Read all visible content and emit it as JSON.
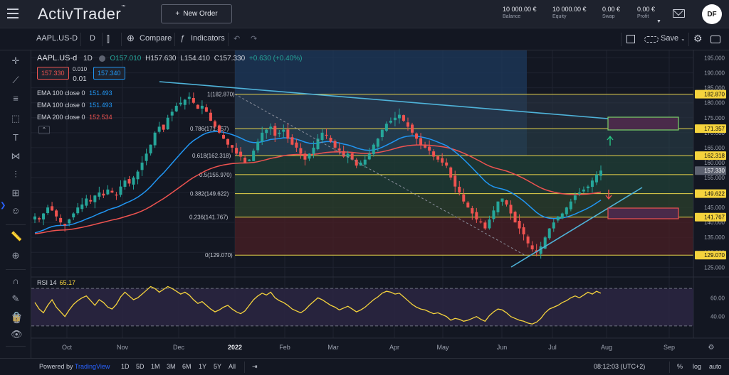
{
  "app": {
    "logo": "ActivTrader",
    "logo_tm": "™",
    "new_order_label": "New Order"
  },
  "account": [
    {
      "value": "10 000.00 €",
      "label": "Balance"
    },
    {
      "value": "10 000.00 €",
      "label": "Equity"
    },
    {
      "value": "0.00 €",
      "label": "Swap"
    },
    {
      "value": "0.00 €",
      "label": "Profit"
    }
  ],
  "user": {
    "initials": "DF"
  },
  "toolbar": {
    "symbol": "AAPL.US-D",
    "interval": "D",
    "compare_label": "Compare",
    "indicators_label": "Indicators",
    "save_label": "Save"
  },
  "legend": {
    "symbol": "AAPL.US-d",
    "interval": "1D",
    "open": "O157.010",
    "high": "H157.630",
    "low": "L154.410",
    "close": "C157.330",
    "change": "+0.630 (+0.40%)",
    "bid": "157.330",
    "spread_top": "0.010",
    "spread_bottom": "0.01",
    "ask": "157.340",
    "ema": [
      {
        "label": "EMA 100 close 0",
        "value": "151.493",
        "color": "#2196f3"
      },
      {
        "label": "EMA 100 close 0",
        "value": "151.493",
        "color": "#2196f3"
      },
      {
        "label": "EMA 200 close 0",
        "value": "152.534",
        "color": "#ef5350"
      }
    ],
    "collapse": "⌃"
  },
  "rsi": {
    "label": "RSI 14",
    "value": "65.17"
  },
  "chart_data": {
    "type": "candlestick",
    "price_axis": [
      "195.000",
      "190.000",
      "185.000",
      "180.000",
      "175.000",
      "170.000",
      "165.000",
      "160.000",
      "155.000",
      "150.000",
      "145.000",
      "140.000",
      "135.000",
      "130.000",
      "125.000"
    ],
    "price_labels": [
      {
        "text": "182.870",
        "price": 182.87
      },
      {
        "text": "171.357",
        "price": 171.357
      },
      {
        "text": "162.318",
        "price": 162.318
      },
      {
        "text": "157.330",
        "price": 157.33
      },
      {
        "text": "149.622",
        "price": 149.622
      },
      {
        "text": "141.767",
        "price": 141.767
      },
      {
        "text": "129.070",
        "price": 129.07
      }
    ],
    "fib_levels": [
      {
        "text": "1(182.870)",
        "price": 182.87
      },
      {
        "text": "0.786(171.357)",
        "price": 171.357
      },
      {
        "text": "0.618(162.318)",
        "price": 162.318
      },
      {
        "text": "0.5(155.970)",
        "price": 155.97
      },
      {
        "text": "0.382(149.622)",
        "price": 149.622
      },
      {
        "text": "0.236(141.767)",
        "price": 141.767
      },
      {
        "text": "0(129.070)",
        "price": 129.07
      }
    ],
    "rsi_axis": [
      "60.00",
      "40.00"
    ],
    "x_labels": [
      "Oct",
      "Nov",
      "Dec",
      "2022",
      "Feb",
      "Mar",
      "Apr",
      "May",
      "Jun",
      "Jul",
      "Aug",
      "Sep"
    ],
    "closes": [
      142,
      141,
      143,
      145,
      144,
      142,
      140,
      139,
      141,
      143,
      145,
      146,
      148,
      147,
      149,
      150,
      149,
      151,
      150,
      149,
      152,
      154,
      153,
      155,
      157,
      160,
      163,
      166,
      170,
      172,
      171,
      175,
      177,
      179,
      180,
      181,
      182,
      180,
      178,
      179,
      177,
      174,
      172,
      170,
      168,
      166,
      165,
      163,
      162,
      160,
      161,
      164,
      167,
      170,
      171,
      172,
      169,
      170,
      171,
      168,
      166,
      165,
      163,
      161,
      163,
      165,
      168,
      170,
      169,
      167,
      165,
      164,
      162,
      163,
      161,
      159,
      160,
      161,
      163,
      166,
      168,
      171,
      173,
      174,
      175,
      176,
      174,
      172,
      170,
      168,
      166,
      165,
      164,
      162,
      161,
      160,
      159,
      155,
      152,
      150,
      147,
      145,
      143,
      141,
      140,
      138,
      141,
      144,
      147,
      148,
      146,
      143,
      140,
      138,
      136,
      133,
      131,
      130,
      132,
      135,
      138,
      140,
      142,
      143,
      145,
      147,
      149,
      150,
      151,
      152,
      154,
      156,
      157.33
    ],
    "rsi_values": [
      55,
      48,
      44,
      52,
      58,
      50,
      45,
      40,
      47,
      53,
      57,
      60,
      62,
      57,
      52,
      58,
      55,
      50,
      48,
      53,
      61,
      66,
      62,
      58,
      60,
      64,
      68,
      72,
      70,
      66,
      69,
      72,
      70,
      67,
      64,
      66,
      63,
      58,
      54,
      56,
      52,
      48,
      45,
      47,
      50,
      52,
      48,
      45,
      43,
      46,
      52,
      58,
      62,
      65,
      63,
      66,
      60,
      57,
      55,
      52,
      48,
      46,
      44,
      47,
      52,
      56,
      60,
      58,
      55,
      52,
      50,
      47,
      49,
      51,
      48,
      45,
      47,
      50,
      54,
      58,
      61,
      65,
      67,
      66,
      64,
      65,
      61,
      57,
      53,
      50,
      48,
      47,
      45,
      43,
      44,
      42,
      40,
      36,
      38,
      37,
      35,
      36,
      38,
      40,
      37,
      35,
      41,
      45,
      48,
      47,
      44,
      40,
      38,
      36,
      35,
      33,
      32,
      34,
      38,
      44,
      48,
      50,
      52,
      55,
      57,
      60,
      62,
      60,
      63,
      66,
      64,
      67,
      65
    ]
  },
  "bottom": {
    "powered_prefix": "Powered by",
    "powered_brand": "TradingView",
    "ranges": [
      "1D",
      "5D",
      "1M",
      "3M",
      "6M",
      "1Y",
      "5Y",
      "All"
    ],
    "time": "08:12:03 (UTC+2)",
    "percent": "%",
    "log": "log",
    "auto": "auto"
  }
}
